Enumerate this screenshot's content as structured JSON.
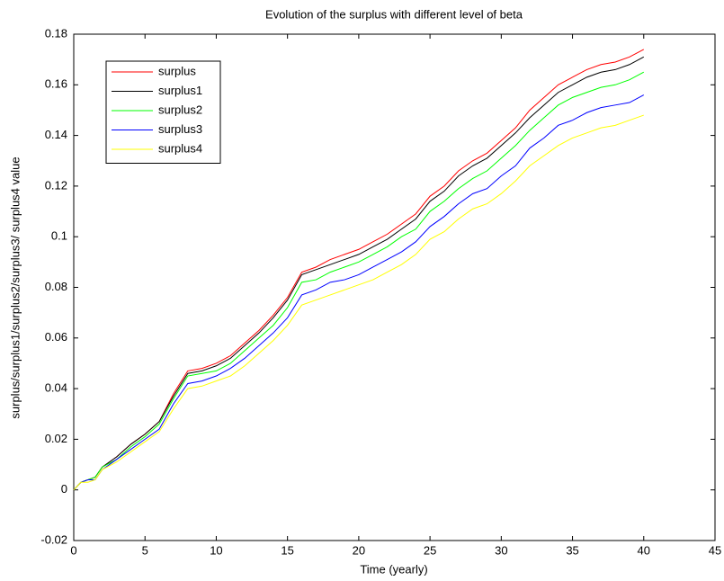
{
  "chart_data": {
    "type": "line",
    "title": "Evolution of the surplus with different level of beta",
    "x_label": "Time (yearly)",
    "y_label": "surplus/surplus1/surplus2/surplus3/ surplus4 value",
    "x": [
      0,
      0.5,
      1,
      1.5,
      2,
      3,
      4,
      5,
      6,
      7,
      8,
      9,
      10,
      11,
      12,
      13,
      14,
      15,
      16,
      17,
      18,
      19,
      20,
      21,
      22,
      23,
      24,
      25,
      26,
      27,
      28,
      29,
      30,
      31,
      32,
      33,
      34,
      35,
      36,
      37,
      38,
      39,
      40
    ],
    "series": [
      {
        "name": "surplus",
        "color": "#ff0000",
        "values": [
          0,
          0.003,
          0.004,
          0.005,
          0.009,
          0.013,
          0.018,
          0.022,
          0.027,
          0.038,
          0.047,
          0.048,
          0.05,
          0.053,
          0.058,
          0.063,
          0.069,
          0.076,
          0.086,
          0.088,
          0.091,
          0.093,
          0.095,
          0.098,
          0.101,
          0.105,
          0.109,
          0.116,
          0.12,
          0.126,
          0.13,
          0.133,
          0.138,
          0.143,
          0.15,
          0.155,
          0.16,
          0.163,
          0.166,
          0.168,
          0.169,
          0.171,
          0.174
        ]
      },
      {
        "name": "surplus1",
        "color": "#000000",
        "values": [
          0,
          0.003,
          0.004,
          0.005,
          0.009,
          0.013,
          0.018,
          0.022,
          0.027,
          0.037,
          0.046,
          0.047,
          0.049,
          0.052,
          0.057,
          0.062,
          0.068,
          0.075,
          0.085,
          0.087,
          0.089,
          0.091,
          0.093,
          0.096,
          0.099,
          0.103,
          0.107,
          0.114,
          0.118,
          0.124,
          0.128,
          0.131,
          0.136,
          0.141,
          0.147,
          0.152,
          0.157,
          0.16,
          0.163,
          0.165,
          0.166,
          0.168,
          0.171
        ]
      },
      {
        "name": "surplus2",
        "color": "#00ff00",
        "values": [
          0,
          0.003,
          0.004,
          0.005,
          0.009,
          0.012,
          0.017,
          0.021,
          0.026,
          0.036,
          0.045,
          0.046,
          0.047,
          0.05,
          0.055,
          0.06,
          0.065,
          0.072,
          0.082,
          0.083,
          0.086,
          0.088,
          0.09,
          0.093,
          0.096,
          0.1,
          0.103,
          0.11,
          0.114,
          0.119,
          0.123,
          0.126,
          0.131,
          0.136,
          0.142,
          0.147,
          0.152,
          0.155,
          0.157,
          0.159,
          0.16,
          0.162,
          0.165
        ]
      },
      {
        "name": "surplus3",
        "color": "#0000ff",
        "values": [
          0,
          0.003,
          0.004,
          0.004,
          0.008,
          0.012,
          0.016,
          0.02,
          0.024,
          0.034,
          0.042,
          0.043,
          0.045,
          0.048,
          0.052,
          0.057,
          0.062,
          0.068,
          0.077,
          0.079,
          0.082,
          0.083,
          0.085,
          0.088,
          0.091,
          0.094,
          0.098,
          0.104,
          0.108,
          0.113,
          0.117,
          0.119,
          0.124,
          0.128,
          0.135,
          0.139,
          0.144,
          0.146,
          0.149,
          0.151,
          0.152,
          0.153,
          0.156
        ]
      },
      {
        "name": "surplus4",
        "color": "#ffff00",
        "values": [
          0,
          0.003,
          0.003,
          0.004,
          0.008,
          0.011,
          0.015,
          0.019,
          0.023,
          0.032,
          0.04,
          0.041,
          0.043,
          0.045,
          0.049,
          0.054,
          0.059,
          0.065,
          0.073,
          0.075,
          0.077,
          0.079,
          0.081,
          0.083,
          0.086,
          0.089,
          0.093,
          0.099,
          0.102,
          0.107,
          0.111,
          0.113,
          0.117,
          0.122,
          0.128,
          0.132,
          0.136,
          0.139,
          0.141,
          0.143,
          0.144,
          0.146,
          0.148
        ]
      }
    ],
    "xlim": [
      0,
      45
    ],
    "xticks": [
      0,
      5,
      10,
      15,
      20,
      25,
      30,
      35,
      40,
      45
    ],
    "ylim": [
      -0.02,
      0.18
    ],
    "yticks": [
      -0.02,
      0,
      0.02,
      0.04,
      0.06,
      0.08,
      0.1,
      0.12,
      0.14,
      0.16,
      0.18
    ],
    "legend": "upper left"
  }
}
